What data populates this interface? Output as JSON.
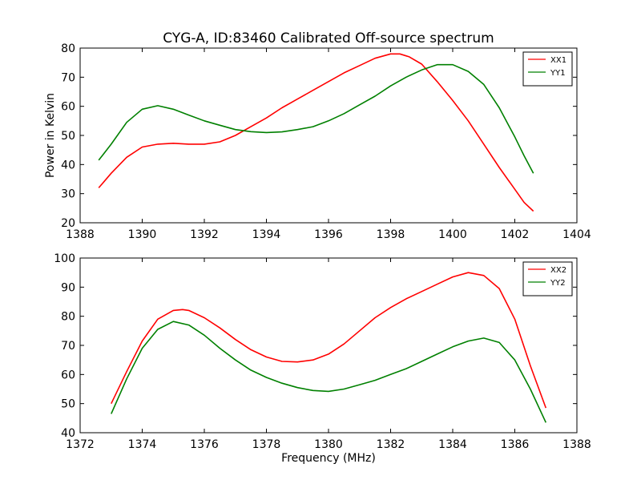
{
  "figure": {
    "title": "CYG-A, ID:83460 Calibrated Off-source spectrum",
    "ylabel": "Power in Kelvin",
    "xlabel": "Frequency (MHz)"
  },
  "colors": {
    "red": "#ff0000",
    "green": "#008000"
  },
  "chart_data": [
    {
      "type": "line",
      "xlim": [
        1388,
        1404
      ],
      "ylim": [
        20,
        80
      ],
      "xticks": [
        1388,
        1390,
        1392,
        1394,
        1396,
        1398,
        1400,
        1402,
        1404
      ],
      "yticks": [
        20,
        30,
        40,
        50,
        60,
        70,
        80
      ],
      "legend": "top-right",
      "grid": false,
      "series": [
        {
          "name": "XX1",
          "color": "#ff0000",
          "x": [
            1388.6,
            1389.0,
            1389.5,
            1390.0,
            1390.5,
            1391.0,
            1391.5,
            1392.0,
            1392.5,
            1393.0,
            1393.5,
            1394.0,
            1394.5,
            1395.0,
            1395.5,
            1396.0,
            1396.5,
            1397.0,
            1397.5,
            1398.0,
            1398.3,
            1398.6,
            1399.0,
            1399.5,
            1400.0,
            1400.5,
            1401.0,
            1401.5,
            1402.0,
            1402.3,
            1402.6
          ],
          "y": [
            32.0,
            37.0,
            42.5,
            46.0,
            47.0,
            47.3,
            47.0,
            47.0,
            47.8,
            50.0,
            53.0,
            56.0,
            59.5,
            62.5,
            65.5,
            68.5,
            71.5,
            74.0,
            76.5,
            78.0,
            78.0,
            77.0,
            74.5,
            68.5,
            62.0,
            55.0,
            47.0,
            39.0,
            31.5,
            27.0,
            24.0
          ]
        },
        {
          "name": "YY1",
          "color": "#008000",
          "x": [
            1388.6,
            1389.0,
            1389.5,
            1390.0,
            1390.5,
            1391.0,
            1391.5,
            1392.0,
            1392.5,
            1393.0,
            1393.5,
            1394.0,
            1394.5,
            1395.0,
            1395.5,
            1396.0,
            1396.5,
            1397.0,
            1397.5,
            1398.0,
            1398.5,
            1399.0,
            1399.5,
            1400.0,
            1400.5,
            1401.0,
            1401.5,
            1402.0,
            1402.3,
            1402.6
          ],
          "y": [
            41.5,
            47.0,
            54.5,
            59.0,
            60.2,
            59.0,
            57.0,
            55.0,
            53.5,
            52.0,
            51.3,
            51.0,
            51.2,
            52.0,
            53.0,
            55.0,
            57.5,
            60.5,
            63.5,
            67.0,
            70.0,
            72.5,
            74.3,
            74.3,
            72.0,
            67.5,
            59.5,
            49.5,
            43.0,
            37.0
          ]
        }
      ]
    },
    {
      "type": "line",
      "xlim": [
        1372,
        1388
      ],
      "ylim": [
        40,
        100
      ],
      "xticks": [
        1372,
        1374,
        1376,
        1378,
        1380,
        1382,
        1384,
        1386,
        1388
      ],
      "yticks": [
        40,
        50,
        60,
        70,
        80,
        90,
        100
      ],
      "legend": "top-right",
      "grid": false,
      "series": [
        {
          "name": "XX2",
          "color": "#ff0000",
          "x": [
            1373.0,
            1373.5,
            1374.0,
            1374.5,
            1375.0,
            1375.3,
            1375.5,
            1376.0,
            1376.5,
            1377.0,
            1377.5,
            1378.0,
            1378.5,
            1379.0,
            1379.5,
            1380.0,
            1380.5,
            1381.0,
            1381.5,
            1382.0,
            1382.5,
            1383.0,
            1383.5,
            1384.0,
            1384.5,
            1385.0,
            1385.5,
            1386.0,
            1386.5,
            1387.0
          ],
          "y": [
            50.0,
            61.0,
            71.5,
            79.0,
            82.0,
            82.3,
            82.0,
            79.5,
            76.0,
            72.0,
            68.5,
            66.0,
            64.5,
            64.3,
            65.0,
            67.0,
            70.5,
            75.0,
            79.5,
            83.0,
            86.0,
            88.5,
            91.0,
            93.5,
            95.0,
            94.0,
            89.5,
            79.0,
            63.0,
            48.5
          ]
        },
        {
          "name": "YY2",
          "color": "#008000",
          "x": [
            1373.0,
            1373.5,
            1374.0,
            1374.5,
            1375.0,
            1375.5,
            1376.0,
            1376.5,
            1377.0,
            1377.5,
            1378.0,
            1378.5,
            1379.0,
            1379.5,
            1380.0,
            1380.5,
            1381.0,
            1381.5,
            1382.0,
            1382.5,
            1383.0,
            1383.5,
            1384.0,
            1384.5,
            1385.0,
            1385.5,
            1386.0,
            1386.5,
            1387.0
          ],
          "y": [
            46.5,
            58.5,
            69.0,
            75.5,
            78.2,
            77.0,
            73.5,
            69.0,
            65.0,
            61.5,
            59.0,
            57.0,
            55.5,
            54.5,
            54.2,
            55.0,
            56.5,
            58.0,
            60.0,
            62.0,
            64.5,
            67.0,
            69.5,
            71.5,
            72.5,
            71.0,
            65.0,
            55.0,
            43.5
          ]
        }
      ]
    }
  ]
}
